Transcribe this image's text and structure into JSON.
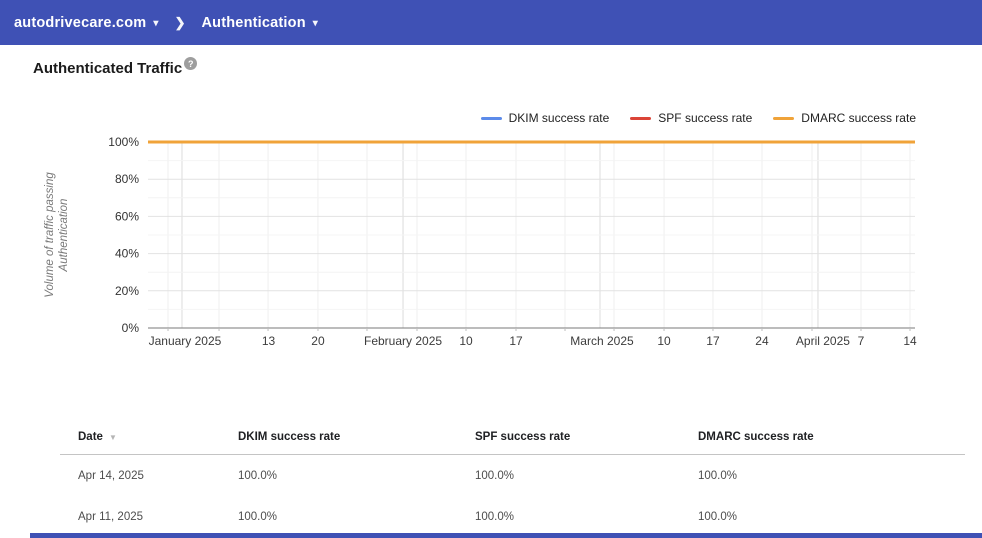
{
  "theme": {
    "topbar_color": "#3f51b5",
    "accent_blue": "#5c8bea",
    "accent_red": "#db4437",
    "accent_orange": "#f0a339"
  },
  "header": {
    "domain_label": "autodrivecare.com",
    "section_label": "Authentication",
    "caret": "▾",
    "separator": "❯"
  },
  "page": {
    "title": "Authenticated Traffic",
    "help_icon": "?"
  },
  "chart_data": {
    "type": "line",
    "title": "Authenticated Traffic",
    "xlabel": "",
    "ylabel": "Volume of traffic passing Authentication",
    "ylabel_lines": [
      "Volume of traffic passing",
      "Authentication"
    ],
    "ylim": [
      0,
      100
    ],
    "grid": true,
    "legend_position": "top-right",
    "y_ticks": [
      {
        "value": 0,
        "label": "0%"
      },
      {
        "value": 20,
        "label": "20%"
      },
      {
        "value": 40,
        "label": "40%"
      },
      {
        "value": 60,
        "label": "60%"
      },
      {
        "value": 80,
        "label": "80%"
      },
      {
        "value": 100,
        "label": "100%"
      }
    ],
    "x_labels": [
      {
        "text": "January 2025",
        "pct": 4.82
      },
      {
        "text": "13",
        "pct": 15.71
      },
      {
        "text": "20",
        "pct": 22.16
      },
      {
        "text": "February 2025",
        "pct": 33.25
      },
      {
        "text": "10",
        "pct": 41.46
      },
      {
        "text": "17",
        "pct": 47.98
      },
      {
        "text": "March 2025",
        "pct": 59.19
      },
      {
        "text": "10",
        "pct": 67.28
      },
      {
        "text": "17",
        "pct": 73.66
      },
      {
        "text": "24",
        "pct": 80.05
      },
      {
        "text": "April 2025",
        "pct": 88.0
      },
      {
        "text": "7",
        "pct": 92.96
      },
      {
        "text": "14",
        "pct": 99.35
      }
    ],
    "x_week_gridlines_pct": [
      2.61,
      9.26,
      15.65,
      22.16,
      28.55,
      35.07,
      41.46,
      47.98,
      54.37,
      60.76,
      67.28,
      73.66,
      80.05,
      86.57,
      92.96,
      99.35
    ],
    "x_month_gridlines_pct": [
      4.43,
      33.25,
      58.93,
      87.35
    ],
    "series": [
      {
        "name": "DKIM success rate",
        "color": "#5c8bea",
        "points": [
          {
            "x_pct": 0,
            "y": 100
          },
          {
            "x_pct": 100,
            "y": 100
          }
        ]
      },
      {
        "name": "SPF success rate",
        "color": "#db4437",
        "points": [
          {
            "x_pct": 0,
            "y": 100
          },
          {
            "x_pct": 100,
            "y": 100
          }
        ]
      },
      {
        "name": "DMARC success rate",
        "color": "#f0a339",
        "points": [
          {
            "x_pct": 0,
            "y": 100
          },
          {
            "x_pct": 100,
            "y": 100
          }
        ]
      }
    ]
  },
  "table": {
    "columns": [
      "Date",
      "DKIM success rate",
      "SPF success rate",
      "DMARC success rate"
    ],
    "sort_column": "Date",
    "sort_direction": "desc",
    "sort_icon": "▼",
    "rows": [
      [
        "Apr 14, 2025",
        "100.0%",
        "100.0%",
        "100.0%"
      ],
      [
        "Apr 11, 2025",
        "100.0%",
        "100.0%",
        "100.0%"
      ]
    ]
  }
}
